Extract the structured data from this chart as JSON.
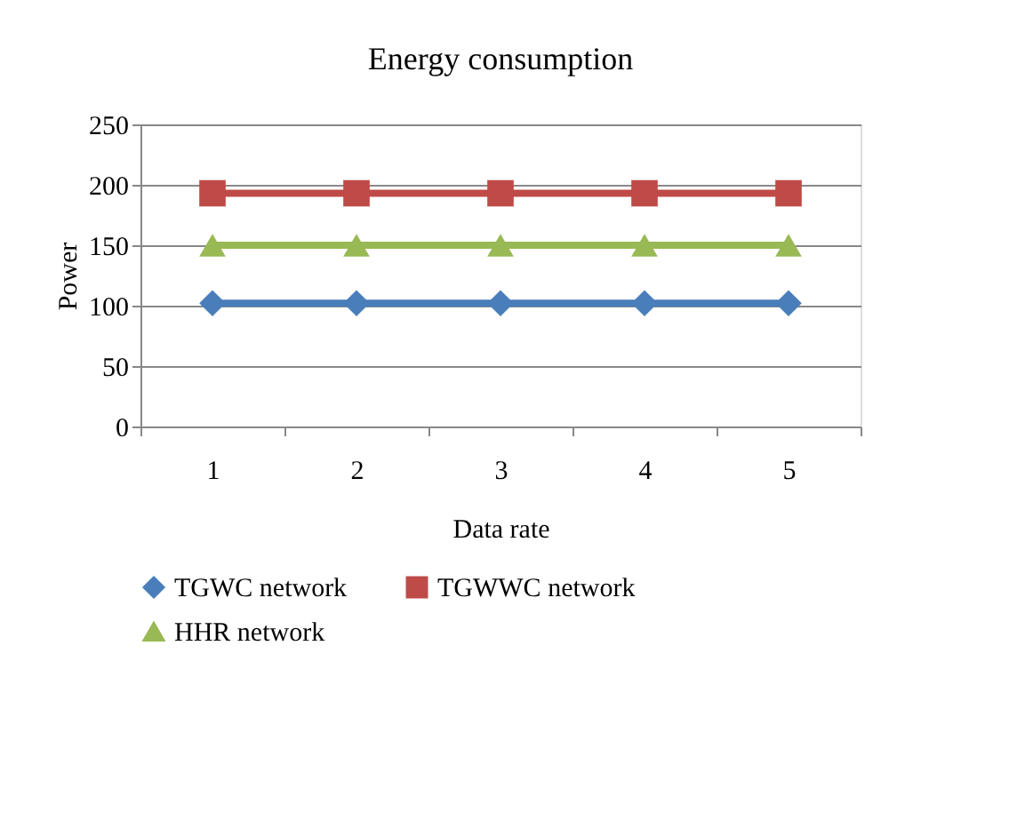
{
  "chart_data": {
    "type": "line",
    "title": "Energy consumption",
    "xlabel": "Data rate",
    "ylabel": "Power",
    "categories": [
      "1",
      "2",
      "3",
      "4",
      "5"
    ],
    "series": [
      {
        "name": "TGWC network",
        "color": "#4a7ebb",
        "marker": "diamond",
        "values": [
          102,
          102,
          102,
          102,
          102
        ]
      },
      {
        "name": "TGWWC network",
        "color": "#be4b48",
        "marker": "square",
        "values": [
          193,
          193,
          193,
          193,
          193
        ]
      },
      {
        "name": "HHR network",
        "color": "#98b954",
        "marker": "triangle",
        "values": [
          150,
          150,
          150,
          150,
          150
        ]
      }
    ],
    "ylim": [
      0,
      250
    ],
    "yticks": [
      0,
      50,
      100,
      150,
      200,
      250
    ],
    "grid": "y",
    "legend": "bottom"
  }
}
